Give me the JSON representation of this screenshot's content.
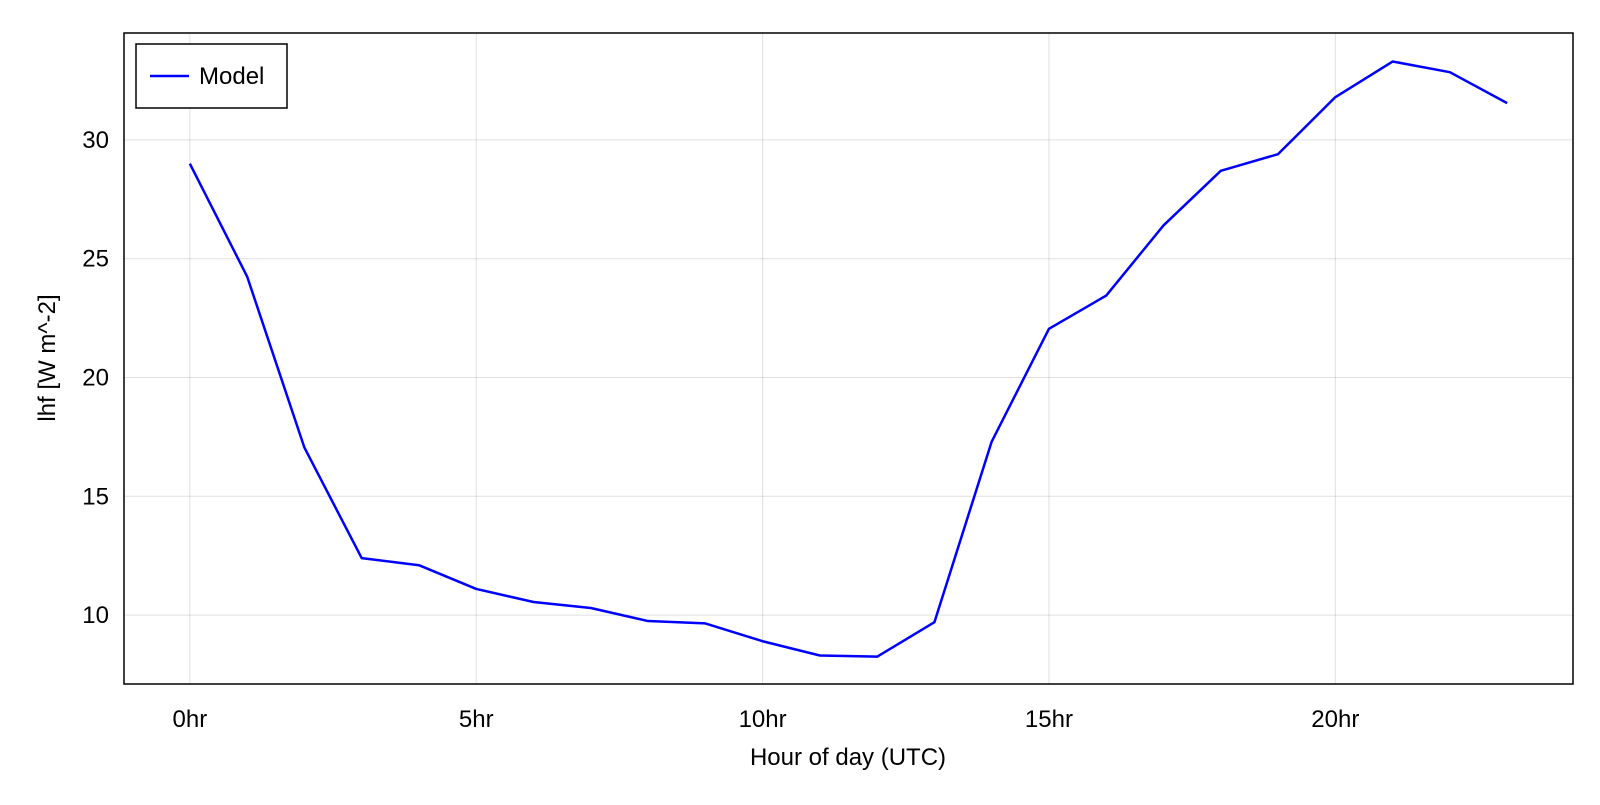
{
  "chart_data": {
    "type": "line",
    "xlabel": "Hour of day (UTC)",
    "ylabel": "lhf [W m^-2]",
    "xlim": [
      -1.15,
      24.15
    ],
    "ylim": [
      7.1,
      34.5
    ],
    "xticks": [
      0,
      5,
      10,
      15,
      20
    ],
    "xtick_labels": [
      "0hr",
      "5hr",
      "10hr",
      "15hr",
      "20hr"
    ],
    "yticks": [
      10,
      15,
      20,
      25,
      30
    ],
    "ytick_labels": [
      "10",
      "15",
      "20",
      "25",
      "30"
    ],
    "grid": true,
    "legend_position": "top-left",
    "x": [
      0,
      1,
      2,
      3,
      4,
      5,
      6,
      7,
      8,
      9,
      10,
      11,
      12,
      13,
      14,
      15,
      16,
      17,
      18,
      19,
      20,
      21,
      22,
      23
    ],
    "series": [
      {
        "name": "Model",
        "color": "#0000ff",
        "values": [
          29.0,
          24.25,
          17.05,
          12.4,
          12.1,
          11.1,
          10.55,
          10.3,
          9.75,
          9.65,
          8.9,
          8.3,
          8.25,
          9.7,
          17.3,
          22.05,
          23.45,
          26.4,
          28.7,
          29.4,
          31.8,
          33.3,
          32.85,
          31.55
        ]
      }
    ]
  }
}
